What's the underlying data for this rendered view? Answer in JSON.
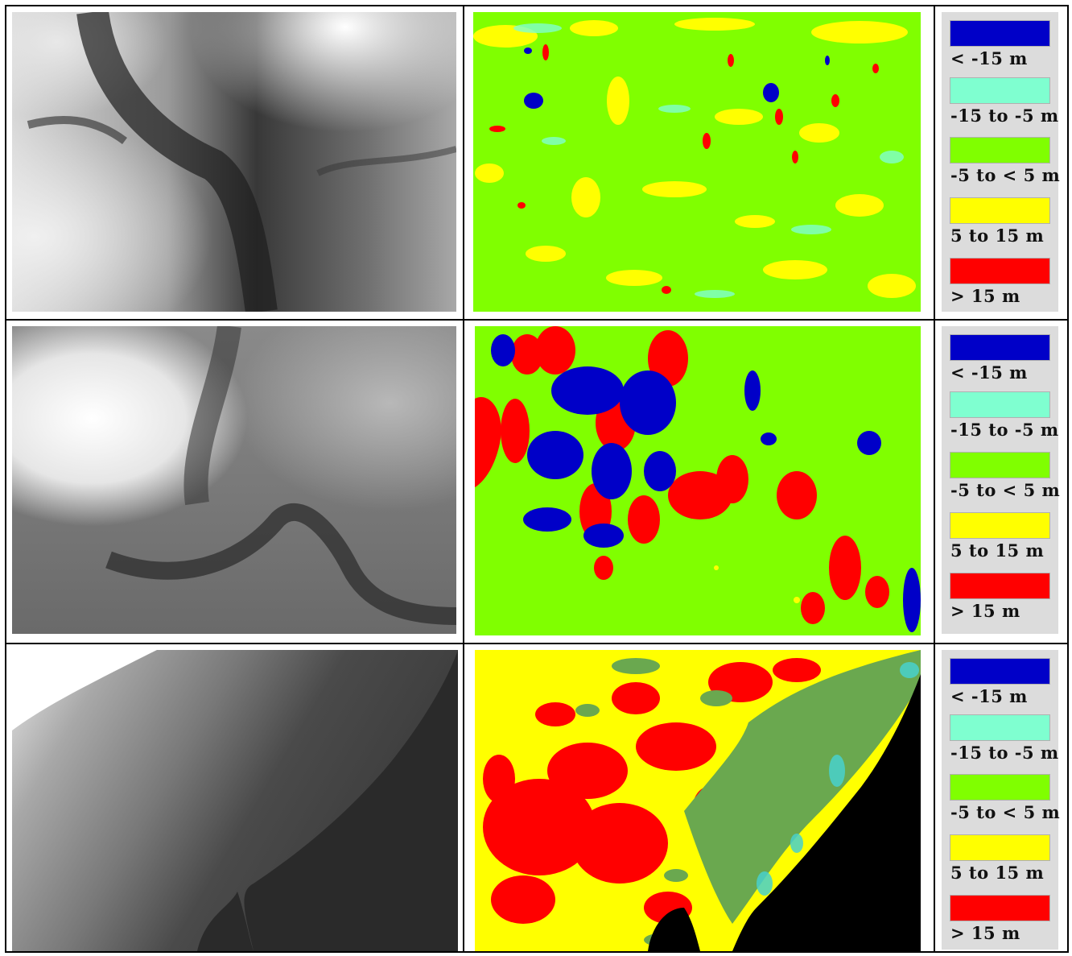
{
  "legend": {
    "items": [
      {
        "label": "< -15 m",
        "color": "#0000c8"
      },
      {
        "label": "-15 to -5 m",
        "color": "#7fffd0"
      },
      {
        "label": "-5 to < 5 m",
        "color": "#80ff00"
      },
      {
        "label": "5 to 15 m",
        "color": "#ffff00"
      },
      {
        "label": "> 15 m",
        "color": "#ff0000"
      }
    ]
  },
  "rows": [
    {
      "dem_icon": "grayscale-elevation-map",
      "diff_icon": "difference-classification-map"
    },
    {
      "dem_icon": "grayscale-elevation-map",
      "diff_icon": "difference-classification-map"
    },
    {
      "dem_icon": "grayscale-elevation-map",
      "diff_icon": "difference-classification-map"
    }
  ]
}
